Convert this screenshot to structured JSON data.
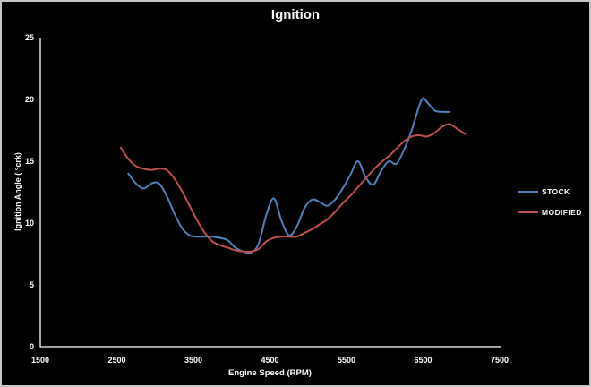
{
  "window": {
    "background": "#000000",
    "border_color": "#c6c6c6",
    "text_color": "#ffffff",
    "axis_color": "#ffffff"
  },
  "chart_data": {
    "type": "line",
    "title": "Ignition",
    "xlabel": "Engine Speed (RPM)",
    "ylabel": "Ignition Angle ( °crk)",
    "xlim": [
      1500,
      7500
    ],
    "ylim": [
      0,
      25
    ],
    "x_ticks": [
      1500,
      2500,
      3500,
      4500,
      5500,
      6500,
      7500
    ],
    "y_ticks": [
      0,
      5,
      10,
      15,
      20,
      25
    ],
    "grid": false,
    "legend_position": "right",
    "series": [
      {
        "name": "STOCK",
        "color": "#4F81BD",
        "points": [
          [
            2650,
            14.0
          ],
          [
            2750,
            13.2
          ],
          [
            2850,
            12.8
          ],
          [
            2950,
            13.2
          ],
          [
            3050,
            13.2
          ],
          [
            3150,
            12.2
          ],
          [
            3250,
            10.8
          ],
          [
            3350,
            9.6
          ],
          [
            3450,
            9.0
          ],
          [
            3550,
            8.9
          ],
          [
            3650,
            8.9
          ],
          [
            3750,
            8.9
          ],
          [
            3850,
            8.8
          ],
          [
            3950,
            8.6
          ],
          [
            4050,
            8.0
          ],
          [
            4150,
            7.7
          ],
          [
            4250,
            7.6
          ],
          [
            4350,
            8.3
          ],
          [
            4450,
            10.6
          ],
          [
            4550,
            12.0
          ],
          [
            4650,
            10.2
          ],
          [
            4750,
            9.0
          ],
          [
            4850,
            9.7
          ],
          [
            4950,
            11.2
          ],
          [
            5050,
            11.9
          ],
          [
            5150,
            11.7
          ],
          [
            5250,
            11.4
          ],
          [
            5350,
            11.9
          ],
          [
            5450,
            12.8
          ],
          [
            5550,
            13.9
          ],
          [
            5650,
            15.0
          ],
          [
            5750,
            13.7
          ],
          [
            5850,
            13.1
          ],
          [
            5950,
            14.2
          ],
          [
            6050,
            15.0
          ],
          [
            6150,
            14.8
          ],
          [
            6250,
            15.9
          ],
          [
            6350,
            17.5
          ],
          [
            6450,
            19.5
          ],
          [
            6500,
            20.1
          ],
          [
            6550,
            19.8
          ],
          [
            6650,
            19.1
          ],
          [
            6750,
            19.0
          ],
          [
            6850,
            19.0
          ]
        ]
      },
      {
        "name": "MODIFIED",
        "color": "#C0504D",
        "points": [
          [
            2550,
            16.1
          ],
          [
            2650,
            15.2
          ],
          [
            2750,
            14.6
          ],
          [
            2850,
            14.4
          ],
          [
            2950,
            14.3
          ],
          [
            3050,
            14.4
          ],
          [
            3150,
            14.3
          ],
          [
            3250,
            13.6
          ],
          [
            3350,
            12.6
          ],
          [
            3450,
            11.4
          ],
          [
            3550,
            10.2
          ],
          [
            3650,
            9.2
          ],
          [
            3750,
            8.5
          ],
          [
            3850,
            8.2
          ],
          [
            3950,
            8.0
          ],
          [
            4050,
            7.8
          ],
          [
            4150,
            7.7
          ],
          [
            4250,
            7.7
          ],
          [
            4350,
            7.9
          ],
          [
            4450,
            8.5
          ],
          [
            4550,
            8.8
          ],
          [
            4650,
            8.9
          ],
          [
            4750,
            8.9
          ],
          [
            4850,
            8.9
          ],
          [
            4950,
            9.2
          ],
          [
            5050,
            9.5
          ],
          [
            5150,
            9.9
          ],
          [
            5250,
            10.3
          ],
          [
            5350,
            10.9
          ],
          [
            5450,
            11.6
          ],
          [
            5550,
            12.2
          ],
          [
            5650,
            12.9
          ],
          [
            5750,
            13.6
          ],
          [
            5850,
            14.3
          ],
          [
            5950,
            14.9
          ],
          [
            6050,
            15.4
          ],
          [
            6150,
            16.0
          ],
          [
            6250,
            16.6
          ],
          [
            6350,
            17.0
          ],
          [
            6450,
            17.1
          ],
          [
            6550,
            17.0
          ],
          [
            6650,
            17.3
          ],
          [
            6750,
            17.8
          ],
          [
            6850,
            18.0
          ],
          [
            6950,
            17.6
          ],
          [
            7050,
            17.2
          ]
        ]
      }
    ]
  }
}
